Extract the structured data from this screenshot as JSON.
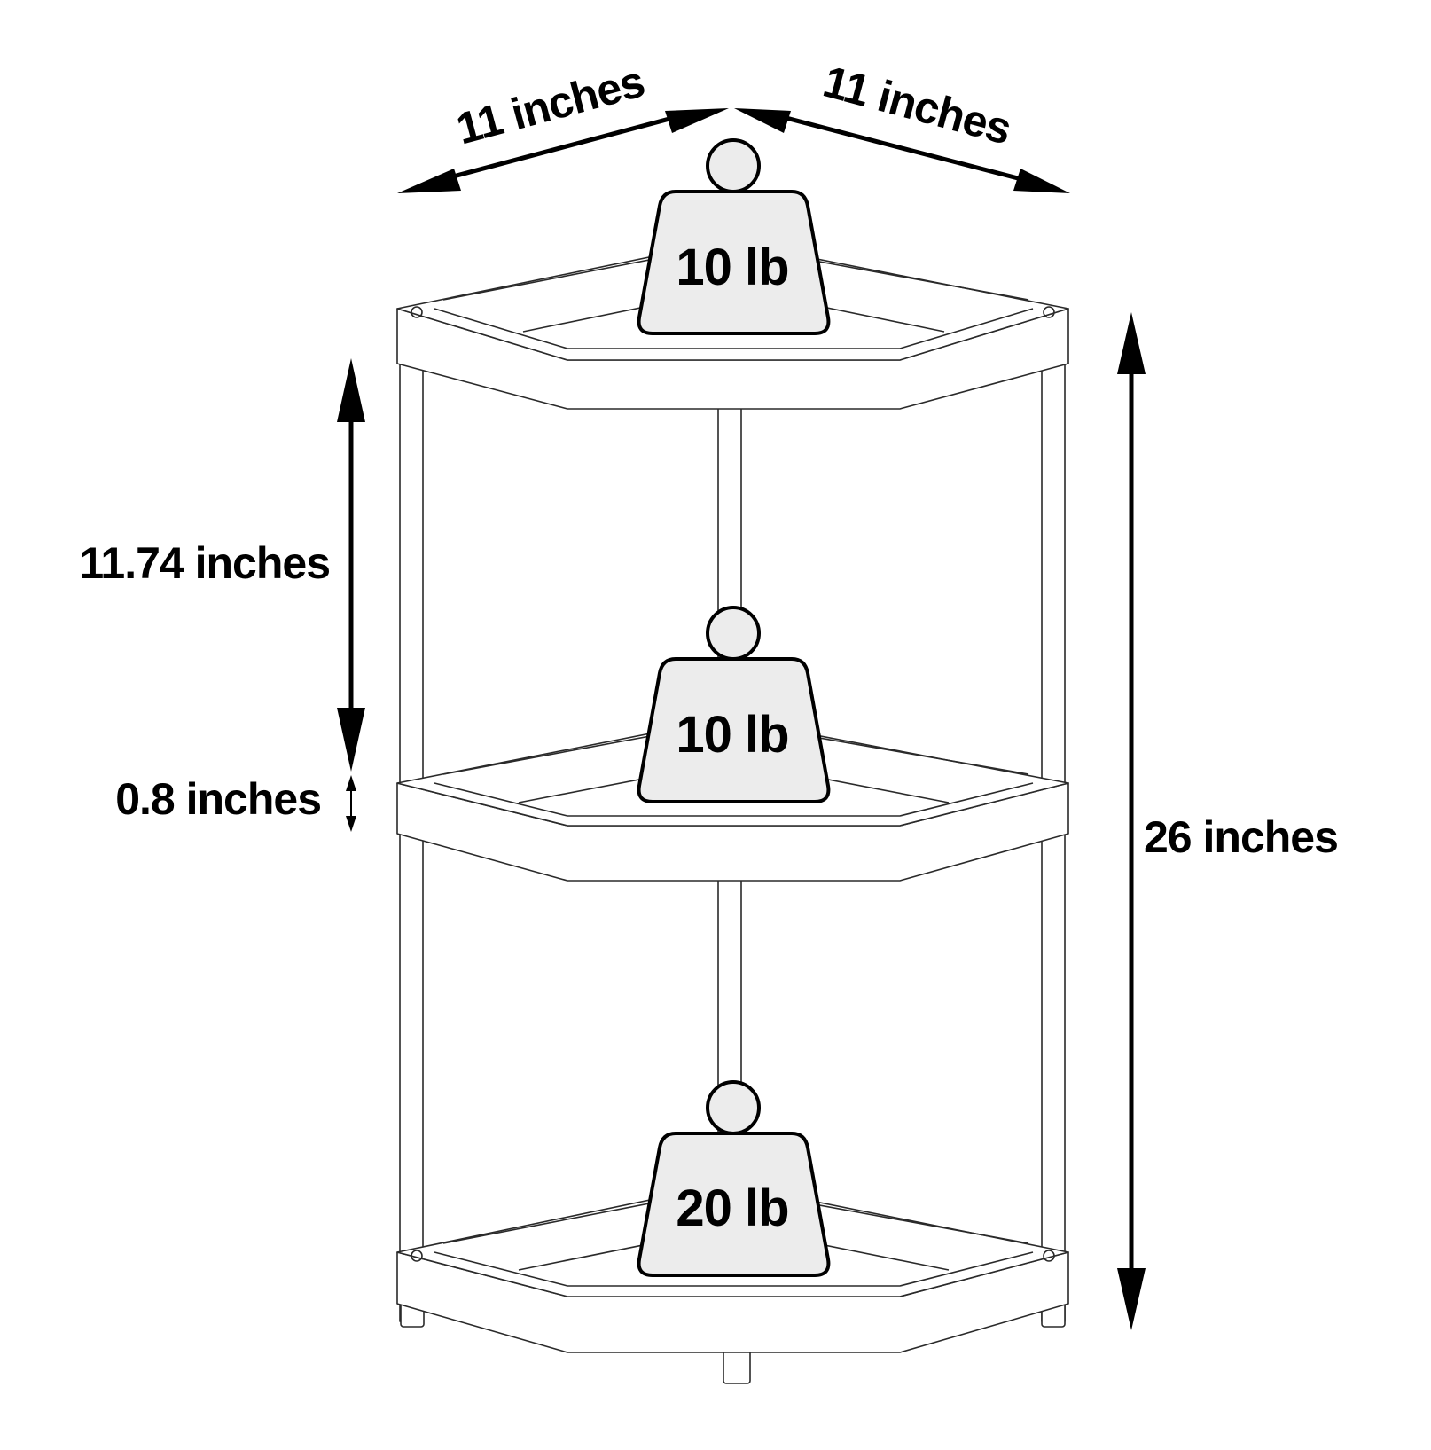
{
  "dimensions": {
    "width_left": "11 inches",
    "width_right": "11 inches",
    "shelf_spacing": "11.74 inches",
    "shelf_thickness": "0.8 inches",
    "total_height": "26 inches"
  },
  "weights": {
    "top": "10 lb",
    "middle": "10 lb",
    "bottom": "20 lb"
  },
  "colors": {
    "line": "#2a2a2a",
    "arrow": "#000000",
    "weight_fill": "#ececec"
  }
}
